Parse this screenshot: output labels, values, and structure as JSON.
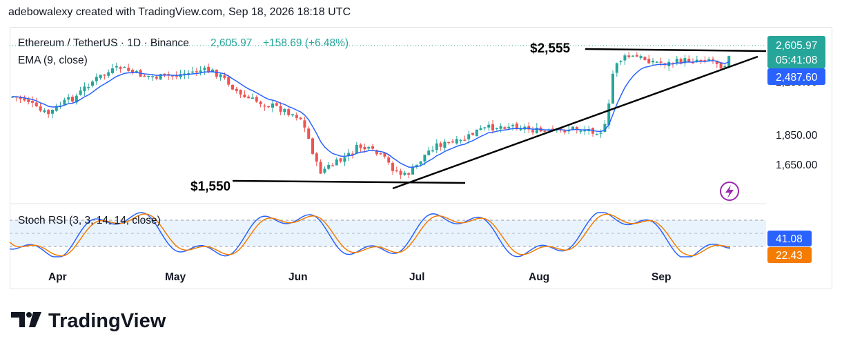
{
  "caption": "adebowalexy created with TradingView.com, Sep 18, 2026 18:18 UTC",
  "brand": "TradingView",
  "colors": {
    "up": "#26a69a",
    "down": "#ef5350",
    "ema": "#2962ff",
    "stoch_k": "#2962ff",
    "stoch_d": "#f57c00",
    "annotation": "#000000"
  },
  "header": {
    "symbol": "Ethereum / TetherUS · 1D · Binance",
    "price": "2,605.97",
    "change": "+158.69 (+6.48%)",
    "ema_label": "EMA (9, close)"
  },
  "price_scale": {
    "ticks": [
      "1,850.00",
      "1,650.00"
    ],
    "hidden_tick": "2,250.00",
    "last_price": "2,605.97",
    "countdown": "05:41:08",
    "ema_value": "2,487.60"
  },
  "annotations": {
    "resistance": "$2,555",
    "support": "$1,550"
  },
  "stoch": {
    "label": "Stoch RSI (3, 3, 14, 14, close)",
    "k_value": "41.08",
    "d_value": "22.43"
  },
  "x_axis": [
    "Apr",
    "May",
    "Jun",
    "Jul",
    "Aug",
    "Sep"
  ],
  "chart_data": {
    "type": "candlestick",
    "symbol": "Ethereum / TetherUS",
    "interval": "1D",
    "exchange": "Binance",
    "y_visible_range": [
      1500,
      2700
    ],
    "last_price": 2605.97,
    "ema_last": 2487.6,
    "series": [
      {
        "name": "EMA (9, close)"
      },
      {
        "name": "Stoch RSI %K",
        "last": 41.08
      },
      {
        "name": "Stoch RSI %D",
        "last": 22.43
      }
    ],
    "trendlines": [
      {
        "label": "$2,555",
        "value": 2555
      },
      {
        "label": "$1,550",
        "value": 1550
      }
    ],
    "grid": false
  }
}
